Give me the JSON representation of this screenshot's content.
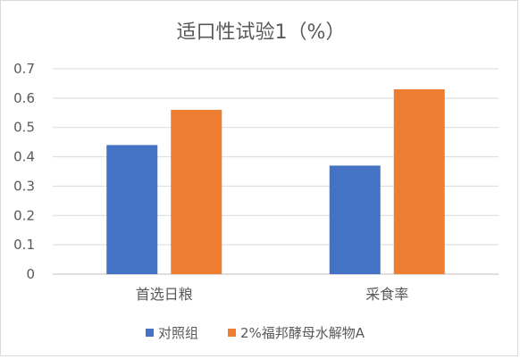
{
  "chart_data": {
    "type": "bar",
    "title": "适口性试验1（%）",
    "categories": [
      "首选日粮",
      "采食率"
    ],
    "series": [
      {
        "name": "对照组",
        "values": [
          0.44,
          0.37
        ],
        "color": "#4472C4"
      },
      {
        "name": "2%福邦酵母水解物A",
        "values": [
          0.56,
          0.63
        ],
        "color": "#ED7D31"
      }
    ],
    "ylim": [
      0,
      0.7
    ],
    "yticks": [
      "0",
      "0.1",
      "0.2",
      "0.3",
      "0.4",
      "0.5",
      "0.6",
      "0.7"
    ],
    "grid": true,
    "legend_position": "bottom"
  }
}
